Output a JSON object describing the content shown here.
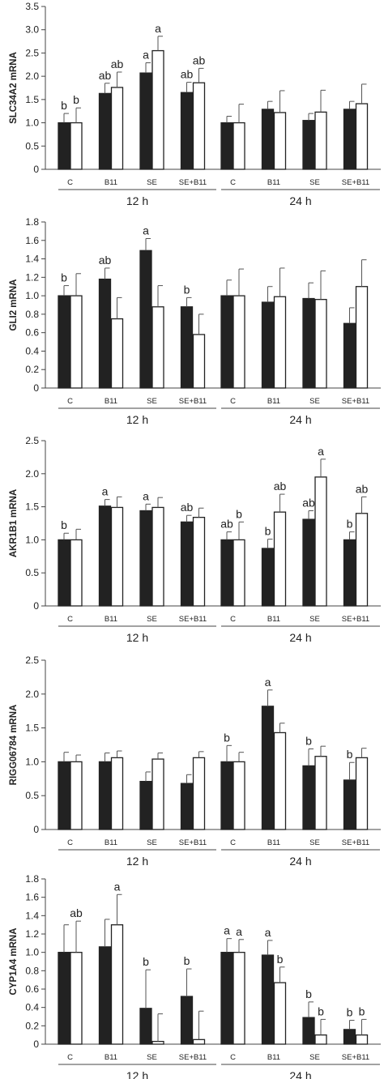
{
  "chart_data": [
    {
      "type": "bar",
      "ylabel": "SLC34A2 mRNA",
      "ylim": [
        0,
        3.5
      ],
      "yticks": [
        "0",
        "0.5",
        "1.0",
        "1.5",
        "2.0",
        "2.5",
        "3.0",
        "3.5"
      ],
      "categories": [
        "C",
        "B11",
        "SE",
        "SE+B11",
        "C",
        "B11",
        "SE",
        "SE+B11"
      ],
      "groups": [
        "12 h",
        "24 h"
      ],
      "series": [
        {
          "color": "#222222",
          "values": [
            1.0,
            1.63,
            2.07,
            1.65,
            1.0,
            1.29,
            1.05,
            1.29
          ],
          "errors": [
            0.2,
            0.22,
            0.22,
            0.22,
            0.14,
            0.17,
            0.15,
            0.17
          ]
        },
        {
          "color": "#ffffff",
          "values": [
            1.0,
            1.76,
            2.55,
            1.86,
            1.0,
            1.22,
            1.23,
            1.41
          ],
          "errors": [
            0.32,
            0.33,
            0.31,
            0.31,
            0.4,
            0.47,
            0.47,
            0.42
          ]
        }
      ],
      "annotations": [
        {
          "index": 0,
          "series": 0,
          "text": "b"
        },
        {
          "index": 0,
          "series": 1,
          "text": "b"
        },
        {
          "index": 1,
          "series": 0,
          "text": "ab"
        },
        {
          "index": 1,
          "series": 1,
          "text": "ab"
        },
        {
          "index": 2,
          "series": 0,
          "text": "a"
        },
        {
          "index": 2,
          "series": 1,
          "text": "a"
        },
        {
          "index": 3,
          "series": 0,
          "text": "ab"
        },
        {
          "index": 3,
          "series": 1,
          "text": "ab"
        }
      ]
    },
    {
      "type": "bar",
      "ylabel": "GLI2 mRNA",
      "ylim": [
        0,
        1.8
      ],
      "yticks": [
        "0",
        "0.2",
        "0.4",
        "0.6",
        "0.8",
        "1.0",
        "1.2",
        "1.4",
        "1.6",
        "1.8"
      ],
      "categories": [
        "C",
        "B11",
        "SE",
        "SE+B11",
        "C",
        "B11",
        "SE",
        "SE+B11"
      ],
      "groups": [
        "12 h",
        "24 h"
      ],
      "series": [
        {
          "color": "#222222",
          "values": [
            1.0,
            1.18,
            1.49,
            0.88,
            1.0,
            0.93,
            0.97,
            0.7
          ],
          "errors": [
            0.11,
            0.12,
            0.13,
            0.1,
            0.17,
            0.17,
            0.17,
            0.17
          ]
        },
        {
          "color": "#ffffff",
          "values": [
            1.0,
            0.75,
            0.88,
            0.58,
            1.0,
            0.99,
            0.96,
            1.1
          ],
          "errors": [
            0.24,
            0.23,
            0.23,
            0.22,
            0.29,
            0.31,
            0.31,
            0.29
          ]
        }
      ],
      "annotations": [
        {
          "index": 0,
          "series": 0,
          "text": "b"
        },
        {
          "index": 1,
          "series": 0,
          "text": "ab"
        },
        {
          "index": 2,
          "series": 0,
          "text": "a"
        },
        {
          "index": 3,
          "series": 0,
          "text": "b"
        }
      ]
    },
    {
      "type": "bar",
      "ylabel": "AKR1B1 mRNA",
      "ylim": [
        0,
        2.5
      ],
      "yticks": [
        "0",
        "0.5",
        "1.0",
        "1.5",
        "2.0",
        "2.5"
      ],
      "categories": [
        "C",
        "B11",
        "SE",
        "SE+B11",
        "C",
        "B11",
        "SE",
        "SE+B11"
      ],
      "groups": [
        "12 h",
        "24 h"
      ],
      "series": [
        {
          "color": "#222222",
          "values": [
            1.0,
            1.51,
            1.44,
            1.27,
            1.0,
            0.87,
            1.31,
            1.0
          ],
          "errors": [
            0.1,
            0.1,
            0.1,
            0.1,
            0.12,
            0.14,
            0.13,
            0.12
          ]
        },
        {
          "color": "#ffffff",
          "values": [
            1.0,
            1.49,
            1.49,
            1.34,
            1.0,
            1.42,
            1.95,
            1.4
          ],
          "errors": [
            0.16,
            0.16,
            0.15,
            0.14,
            0.27,
            0.27,
            0.27,
            0.25
          ]
        }
      ],
      "annotations": [
        {
          "index": 0,
          "series": 0,
          "text": "b"
        },
        {
          "index": 1,
          "series": 0,
          "text": "a"
        },
        {
          "index": 2,
          "series": 0,
          "text": "a"
        },
        {
          "index": 3,
          "series": 0,
          "text": "ab"
        },
        {
          "index": 4,
          "series": 0,
          "text": "ab"
        },
        {
          "index": 4,
          "series": 1,
          "text": "b"
        },
        {
          "index": 5,
          "series": 0,
          "text": "b"
        },
        {
          "index": 5,
          "series": 1,
          "text": "ab"
        },
        {
          "index": 6,
          "series": 0,
          "text": "ab"
        },
        {
          "index": 6,
          "series": 1,
          "text": "a"
        },
        {
          "index": 7,
          "series": 0,
          "text": "b"
        },
        {
          "index": 7,
          "series": 1,
          "text": "ab"
        }
      ]
    },
    {
      "type": "bar",
      "ylabel": "RIGG06784 mRNA",
      "ylim": [
        0,
        2.5
      ],
      "yticks": [
        "0",
        "0.5",
        "1.0",
        "1.5",
        "2.0",
        "2.5"
      ],
      "categories": [
        "C",
        "B11",
        "SE",
        "SE+B11",
        "C",
        "B11",
        "SE",
        "SE+B11"
      ],
      "groups": [
        "12 h",
        "24 h"
      ],
      "series": [
        {
          "color": "#222222",
          "values": [
            1.0,
            1.0,
            0.71,
            0.68,
            1.0,
            1.82,
            0.94,
            0.73
          ],
          "errors": [
            0.14,
            0.13,
            0.14,
            0.13,
            0.24,
            0.24,
            0.25,
            0.26
          ]
        },
        {
          "color": "#ffffff",
          "values": [
            1.0,
            1.06,
            1.04,
            1.06,
            1.0,
            1.43,
            1.08,
            1.06
          ],
          "errors": [
            0.1,
            0.1,
            0.09,
            0.09,
            0.14,
            0.14,
            0.15,
            0.14
          ]
        }
      ],
      "annotations": [
        {
          "index": 4,
          "series": 0,
          "text": "b"
        },
        {
          "index": 5,
          "series": 0,
          "text": "a"
        },
        {
          "index": 6,
          "series": 0,
          "text": "b"
        },
        {
          "index": 7,
          "series": 0,
          "text": "b"
        }
      ]
    },
    {
      "type": "bar",
      "ylabel": "CYP1A4 mRNA",
      "ylim": [
        0,
        1.8
      ],
      "yticks": [
        "0",
        "0.2",
        "0.4",
        "0.6",
        "0.8",
        "1.0",
        "1.2",
        "1.4",
        "1.6",
        "1.8"
      ],
      "categories": [
        "C",
        "B11",
        "SE",
        "SE+B11",
        "C",
        "B11",
        "SE",
        "SE+B11"
      ],
      "groups": [
        "12 h",
        "24 h"
      ],
      "series": [
        {
          "color": "#222222",
          "values": [
            1.0,
            1.06,
            0.39,
            0.52,
            1.0,
            0.97,
            0.29,
            0.16
          ],
          "errors": [
            0.3,
            0.3,
            0.42,
            0.3,
            0.15,
            0.16,
            0.17,
            0.1
          ]
        },
        {
          "color": "#ffffff",
          "values": [
            1.0,
            1.3,
            0.03,
            0.05,
            1.0,
            0.67,
            0.1,
            0.1
          ],
          "errors": [
            0.34,
            0.33,
            0.3,
            0.31,
            0.14,
            0.17,
            0.17,
            0.17
          ]
        }
      ],
      "annotations": [
        {
          "index": 0,
          "series": 1,
          "text": "ab"
        },
        {
          "index": 1,
          "series": 1,
          "text": "a"
        },
        {
          "index": 2,
          "series": 0,
          "text": "b"
        },
        {
          "index": 3,
          "series": 0,
          "text": "b"
        },
        {
          "index": 4,
          "series": 0,
          "text": "a"
        },
        {
          "index": 4,
          "series": 1,
          "text": "a"
        },
        {
          "index": 5,
          "series": 0,
          "text": "a"
        },
        {
          "index": 5,
          "series": 1,
          "text": "b"
        },
        {
          "index": 6,
          "series": 0,
          "text": "b"
        },
        {
          "index": 6,
          "series": 1,
          "text": "b"
        },
        {
          "index": 7,
          "series": 0,
          "text": "b"
        },
        {
          "index": 7,
          "series": 1,
          "text": "b"
        }
      ]
    }
  ]
}
